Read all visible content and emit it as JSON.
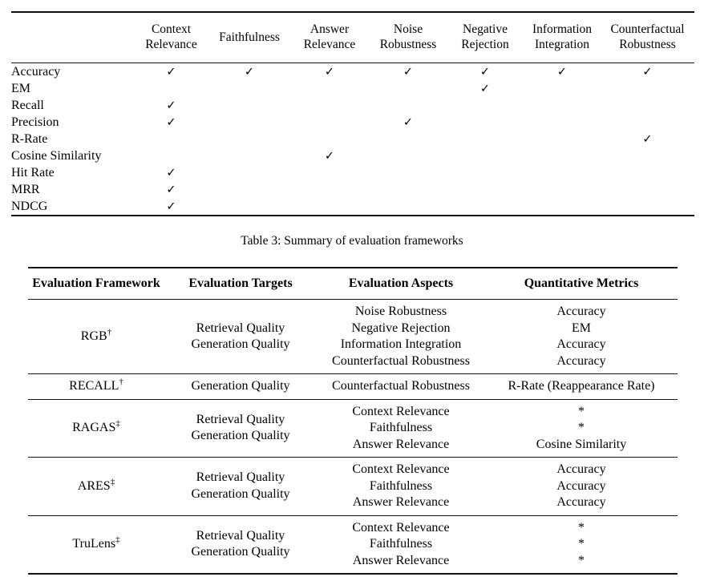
{
  "metrics_table": {
    "check_glyph": "✓",
    "corner_label": "",
    "columns": [
      "Context Relevance",
      "Faithfulness",
      "Answer Relevance",
      "Noise Robustness",
      "Negative Rejection",
      "Information Integration",
      "Counterfactual Robustness"
    ],
    "rows": [
      {
        "label": "Accuracy",
        "checks": [
          1,
          1,
          1,
          1,
          1,
          1,
          1
        ]
      },
      {
        "label": "EM",
        "checks": [
          0,
          0,
          0,
          0,
          1,
          0,
          0
        ]
      },
      {
        "label": "Recall",
        "checks": [
          1,
          0,
          0,
          0,
          0,
          0,
          0
        ]
      },
      {
        "label": "Precision",
        "checks": [
          1,
          0,
          0,
          1,
          0,
          0,
          0
        ]
      },
      {
        "label": "R-Rate",
        "checks": [
          0,
          0,
          0,
          0,
          0,
          0,
          1
        ]
      },
      {
        "label": "Cosine Similarity",
        "checks": [
          0,
          0,
          1,
          0,
          0,
          0,
          0
        ]
      },
      {
        "label": "Hit Rate",
        "checks": [
          1,
          0,
          0,
          0,
          0,
          0,
          0
        ]
      },
      {
        "label": "MRR",
        "checks": [
          1,
          0,
          0,
          0,
          0,
          0,
          0
        ]
      },
      {
        "label": "NDCG",
        "checks": [
          1,
          0,
          0,
          0,
          0,
          0,
          0
        ]
      }
    ]
  },
  "caption": {
    "text": "Table 3: Summary of evaluation frameworks"
  },
  "frameworks_table": {
    "headers": [
      "Evaluation Framework",
      "Evaluation Targets",
      "Evaluation Aspects",
      "Quantitative Metrics"
    ],
    "rows": [
      {
        "framework": "RGB",
        "marker": "†",
        "targets": [
          "Retrieval Quality",
          "Generation Quality"
        ],
        "aspects": [
          "Noise Robustness",
          "Negative Rejection",
          "Information Integration",
          "Counterfactual Robustness"
        ],
        "metrics": [
          "Accuracy",
          "EM",
          "Accuracy",
          "Accuracy"
        ]
      },
      {
        "framework": "RECALL",
        "marker": "†",
        "targets": [
          "Generation Quality"
        ],
        "aspects": [
          "Counterfactual Robustness"
        ],
        "metrics": [
          "R-Rate (Reappearance Rate)"
        ]
      },
      {
        "framework": "RAGAS",
        "marker": "‡",
        "targets": [
          "Retrieval Quality",
          "Generation Quality"
        ],
        "aspects": [
          "Context Relevance",
          "Faithfulness",
          "Answer Relevance"
        ],
        "metrics": [
          "*",
          "*",
          "Cosine Similarity"
        ]
      },
      {
        "framework": "ARES",
        "marker": "‡",
        "targets": [
          "Retrieval Quality",
          "Generation Quality"
        ],
        "aspects": [
          "Context Relevance",
          "Faithfulness",
          "Answer Relevance"
        ],
        "metrics": [
          "Accuracy",
          "Accuracy",
          "Accuracy"
        ]
      },
      {
        "framework": "TruLens",
        "marker": "‡",
        "targets": [
          "Retrieval Quality",
          "Generation Quality"
        ],
        "aspects": [
          "Context Relevance",
          "Faithfulness",
          "Answer Relevance"
        ],
        "metrics": [
          "*",
          "*",
          "*"
        ]
      }
    ]
  }
}
